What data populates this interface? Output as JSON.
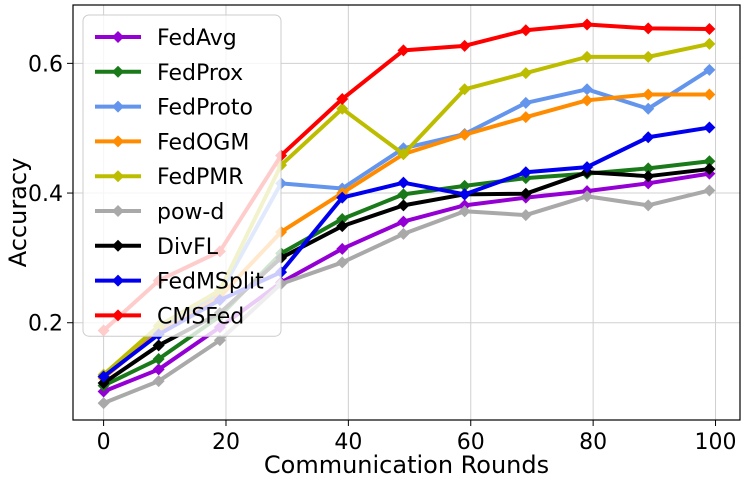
{
  "chart_data": {
    "type": "line",
    "xlabel": "Communication Rounds",
    "ylabel": "Accuracy",
    "xlim": [
      -5,
      104
    ],
    "ylim": [
      0.05,
      0.69
    ],
    "xticks": [
      0,
      20,
      40,
      60,
      80,
      100
    ],
    "yticks": [
      0.2,
      0.4,
      0.6
    ],
    "xtick_labels": [
      "0",
      "20",
      "40",
      "60",
      "80",
      "100"
    ],
    "ytick_labels": [
      "0.2",
      "0.4",
      "0.6"
    ],
    "grid": true,
    "legend_position": "upper-left",
    "x": [
      0,
      9,
      19,
      29,
      39,
      49,
      59,
      69,
      79,
      89,
      99
    ],
    "series": [
      {
        "name": "FedAvg",
        "color": "#9400d3",
        "values": [
          0.094,
          0.128,
          0.193,
          0.262,
          0.314,
          0.356,
          0.381,
          0.393,
          0.403,
          0.415,
          0.43
        ]
      },
      {
        "name": "FedProx",
        "color": "#1a7a1a",
        "values": [
          0.103,
          0.144,
          0.21,
          0.307,
          0.36,
          0.398,
          0.411,
          0.423,
          0.43,
          0.438,
          0.449
        ]
      },
      {
        "name": "FedProto",
        "color": "#6495ed",
        "values": [
          0.117,
          0.19,
          0.245,
          0.415,
          0.407,
          0.469,
          0.491,
          0.539,
          0.56,
          0.53,
          0.59
        ]
      },
      {
        "name": "FedOGM",
        "color": "#ff8c00",
        "values": [
          0.115,
          0.185,
          0.24,
          0.34,
          0.4,
          0.46,
          0.49,
          0.517,
          0.543,
          0.552,
          0.552
        ]
      },
      {
        "name": "FedPMR",
        "color": "#bdbd00",
        "values": [
          0.12,
          0.195,
          0.25,
          0.443,
          0.53,
          0.46,
          0.56,
          0.585,
          0.61,
          0.61,
          0.63
        ]
      },
      {
        "name": "pow-d",
        "color": "#a9a9a9",
        "values": [
          0.076,
          0.11,
          0.173,
          0.26,
          0.293,
          0.337,
          0.372,
          0.366,
          0.395,
          0.381,
          0.404
        ]
      },
      {
        "name": "DivFL",
        "color": "#000000",
        "values": [
          0.107,
          0.165,
          0.215,
          0.3,
          0.349,
          0.381,
          0.398,
          0.399,
          0.432,
          0.426,
          0.437
        ]
      },
      {
        "name": "FedMSplit",
        "color": "#0000ee",
        "values": [
          0.117,
          0.182,
          0.235,
          0.278,
          0.393,
          0.416,
          0.398,
          0.432,
          0.44,
          0.486,
          0.501
        ]
      },
      {
        "name": "CMSFed",
        "color": "#ff0000",
        "values": [
          0.188,
          0.265,
          0.31,
          0.458,
          0.545,
          0.62,
          0.627,
          0.651,
          0.66,
          0.654,
          0.653
        ]
      }
    ]
  }
}
